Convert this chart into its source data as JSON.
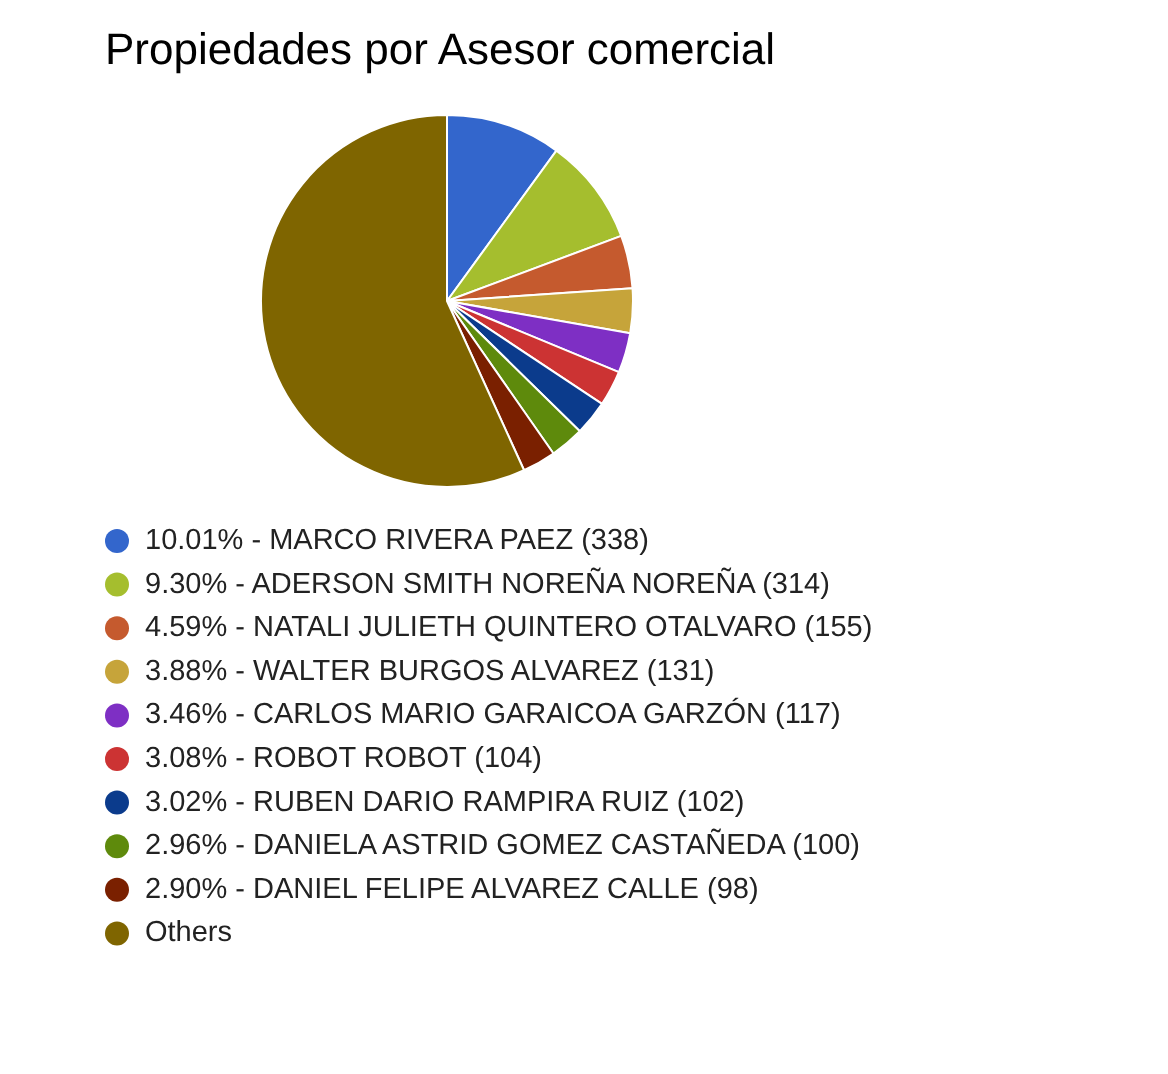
{
  "chart_data": {
    "type": "pie",
    "title": "Propiedades por Asesor comercial",
    "legend": "bottom",
    "categories": [
      "10.01% - MARCO RIVERA PAEZ (338)",
      "9.30% - ADERSON SMITH NOREÑA NOREÑA (314)",
      "4.59% - NATALI JULIETH QUINTERO OTALVARO (155)",
      "3.88% - WALTER BURGOS ALVAREZ (131)",
      "3.46% - CARLOS MARIO GARAICOA GARZÓN (117)",
      "3.08% - ROBOT ROBOT (104)",
      "3.02% - RUBEN DARIO RAMPIRA RUIZ (102)",
      "2.96% - DANIELA ASTRID GOMEZ CASTAÑEDA (100)",
      "2.90% - DANIEL FELIPE ALVAREZ CALLE (98)",
      "Others"
    ],
    "values": [
      10.01,
      9.3,
      4.59,
      3.88,
      3.46,
      3.08,
      3.02,
      2.96,
      2.9,
      56.8
    ],
    "colors": [
      "#3366cc",
      "#a5be2e",
      "#c55a2e",
      "#c6a43a",
      "#7e2fc4",
      "#cc3333",
      "#0b3b8c",
      "#5e8a0c",
      "#7a2000",
      "#7f6500"
    ]
  }
}
